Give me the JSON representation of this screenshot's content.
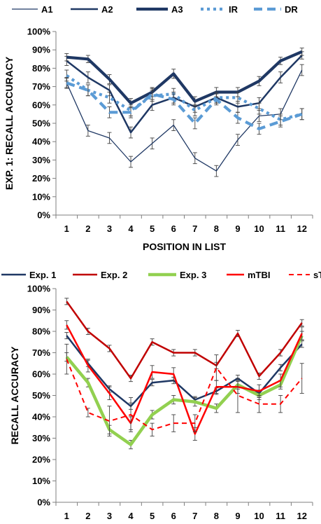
{
  "chart_data": [
    {
      "type": "line",
      "title": "",
      "xlabel": "POSITION IN LIST",
      "ylabel": "EXP. 1: RECALL ACCURACY",
      "ylim": [
        0,
        100
      ],
      "y_ticks": [
        "0%",
        "10%",
        "20%",
        "30%",
        "40%",
        "50%",
        "60%",
        "70%",
        "80%",
        "90%",
        "100%"
      ],
      "categories": [
        "1",
        "2",
        "3",
        "4",
        "5",
        "6",
        "7",
        "8",
        "9",
        "10",
        "11",
        "12"
      ],
      "grid": false,
      "legend": "top",
      "series": [
        {
          "name": "A1",
          "color": "#1f3864",
          "width": 1.3,
          "dash": "",
          "values": [
            72,
            46,
            42,
            29,
            39,
            49,
            31,
            24,
            41,
            54,
            55,
            79
          ],
          "errors": [
            2.5,
            3,
            3,
            3,
            3,
            3,
            3,
            3,
            3,
            3,
            3,
            3
          ]
        },
        {
          "name": "A2",
          "color": "#1f3864",
          "width": 2.5,
          "dash": "",
          "values": [
            84,
            75,
            68,
            45,
            60,
            64,
            59,
            64,
            59,
            61,
            75,
            87
          ],
          "errors": [
            2.5,
            3,
            3,
            3,
            3,
            3,
            3,
            3,
            3,
            3,
            3,
            2
          ]
        },
        {
          "name": "A3",
          "color": "#1f3864",
          "width": 4.2,
          "dash": "",
          "values": [
            86,
            85,
            74,
            61,
            67,
            77,
            62,
            67,
            67,
            73,
            84,
            89
          ],
          "errors": [
            2,
            2,
            2.5,
            2.5,
            2.5,
            2.5,
            2.5,
            2.5,
            2.5,
            2.5,
            2,
            2
          ]
        },
        {
          "name": "IR",
          "color": "#5b9bd5",
          "width": 4.2,
          "dash": "4,5",
          "values": [
            76,
            68,
            64,
            57,
            65,
            66,
            57,
            64,
            64,
            58,
            52,
            55
          ],
          "errors": [
            3,
            3,
            3,
            3,
            3,
            3,
            3,
            3,
            3,
            3,
            3,
            3
          ]
        },
        {
          "name": "DR",
          "color": "#5b9bd5",
          "width": 4.2,
          "dash": "12,7",
          "values": [
            72,
            68,
            56,
            56,
            66,
            63,
            50,
            63,
            53,
            47,
            51,
            55
          ],
          "errors": [
            3,
            3,
            3,
            3,
            3,
            3,
            3,
            3,
            3,
            3,
            3,
            3
          ]
        }
      ]
    },
    {
      "type": "line",
      "title": "",
      "xlabel": "POSITION IN LIST",
      "ylabel": "RECALL  ACCURACY",
      "ylim": [
        0,
        100
      ],
      "y_ticks": [
        "0%",
        "10%",
        "20%",
        "30%",
        "40%",
        "50%",
        "60%",
        "70%",
        "80%",
        "90%",
        "100%"
      ],
      "categories": [
        "1",
        "2",
        "3",
        "4",
        "5",
        "6",
        "7",
        "8",
        "9",
        "10",
        "11",
        "12"
      ],
      "grid": false,
      "legend": "top",
      "series": [
        {
          "name": "Exp. 1",
          "color": "#1f3864",
          "width": 2.5,
          "dash": "",
          "values": [
            78,
            65,
            53,
            45,
            56,
            57,
            48,
            52,
            58,
            51,
            63,
            74
          ],
          "errors": [
            1.5,
            1.5,
            1.5,
            1.5,
            1.5,
            1.5,
            1.5,
            1.5,
            1.5,
            1.5,
            1.5,
            1.5
          ]
        },
        {
          "name": "Exp. 2",
          "color": "#c00000",
          "width": 2.5,
          "dash": "",
          "values": [
            94,
            80,
            72,
            58,
            75,
            70,
            70,
            64,
            79,
            59,
            70,
            84
          ],
          "errors": [
            1.5,
            1.5,
            1.5,
            1.5,
            1.5,
            1.5,
            1.5,
            1.5,
            1.5,
            1.5,
            1.5,
            1.5
          ]
        },
        {
          "name": "Exp. 3",
          "color": "#92d050",
          "width": 4.5,
          "dash": "",
          "values": [
            68,
            56,
            34,
            27,
            41,
            48,
            47,
            44,
            55,
            50,
            55,
            78
          ],
          "errors": [
            2,
            2,
            2,
            2,
            2,
            2,
            2,
            2,
            2,
            2,
            2,
            2
          ]
        },
        {
          "name": "mTBI",
          "color": "#ff0000",
          "width": 2.5,
          "dash": "",
          "values": [
            83,
            64,
            51,
            37,
            61,
            60,
            32,
            54,
            54,
            52,
            57,
            79
          ],
          "errors": [
            2,
            3,
            3,
            3,
            3,
            3,
            3,
            3,
            3,
            3,
            3,
            3
          ]
        },
        {
          "name": "sTBI",
          "color": "#ff0000",
          "width": 2,
          "dash": "7,5",
          "values": [
            67,
            42,
            38,
            41,
            34,
            37,
            37,
            63,
            50,
            46,
            46,
            58
          ],
          "errors": [
            7,
            2,
            7,
            8,
            3,
            4,
            4,
            6,
            8,
            4,
            4,
            7
          ]
        }
      ]
    }
  ]
}
